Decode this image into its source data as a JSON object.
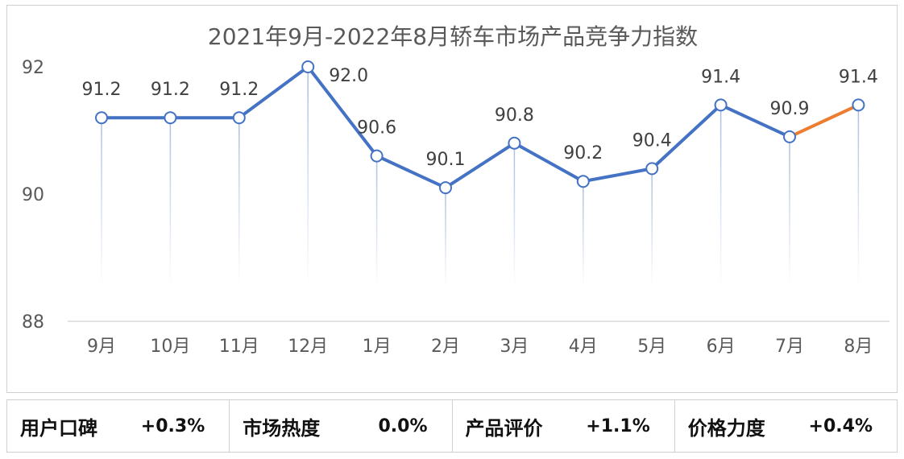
{
  "chart_data": {
    "type": "line",
    "title": "2021年9月-2022年8月轿车市场产品竞争力指数",
    "categories": [
      "9月",
      "10月",
      "11月",
      "12月",
      "1月",
      "2月",
      "3月",
      "4月",
      "5月",
      "6月",
      "7月",
      "8月"
    ],
    "values": [
      91.2,
      91.2,
      91.2,
      92.0,
      90.6,
      90.1,
      90.8,
      90.2,
      90.4,
      91.4,
      90.9,
      91.4
    ],
    "data_labels": [
      "91.2",
      "91.2",
      "91.2",
      "92.0",
      "90.6",
      "90.1",
      "90.8",
      "90.2",
      "90.4",
      "91.4",
      "90.9",
      "91.4"
    ],
    "y_ticks": [
      "92",
      "90",
      "88"
    ],
    "ylim": [
      88,
      92
    ],
    "xlabel": "",
    "ylabel": "",
    "grid": false,
    "series_color": "#4472c4",
    "highlight_color": "#ed7d31",
    "highlight_from_index": 10
  },
  "metrics": [
    {
      "label": "用户口碑",
      "value": "+0.3%"
    },
    {
      "label": "市场热度",
      "value": "0.0%"
    },
    {
      "label": "产品评价",
      "value": "+1.1%"
    },
    {
      "label": "价格力度",
      "value": "+0.4%"
    }
  ]
}
